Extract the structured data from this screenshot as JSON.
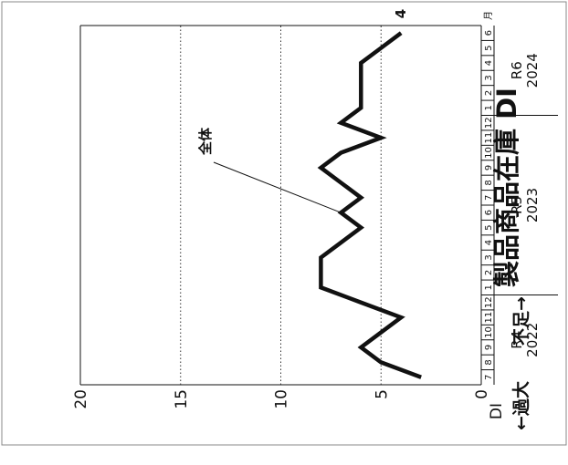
{
  "chart_data": {
    "type": "line",
    "title": "製品商品在庫 DI",
    "yaxis_label": "DI",
    "ylim": [
      0,
      20
    ],
    "yticks": [
      "0",
      "5",
      "10",
      "15",
      "20"
    ],
    "grid": "dotted at 5, 10, 15",
    "x_months": [
      "7",
      "8",
      "9",
      "10",
      "11",
      "12",
      "1",
      "2",
      "3",
      "4",
      "5",
      "6",
      "7",
      "8",
      "9",
      "10",
      "11",
      "12",
      "1",
      "2",
      "3",
      "4",
      "5",
      "6"
    ],
    "month_unit": "月",
    "year_groups": [
      {
        "era": "R4",
        "year": "2022"
      },
      {
        "era": "R5",
        "year": "2023"
      },
      {
        "era": "R6",
        "year": "2024"
      }
    ],
    "series": [
      {
        "name": "全体",
        "values": [
          3,
          5,
          6,
          5,
          4,
          6,
          8,
          8,
          8,
          7,
          6,
          7,
          6,
          7,
          8,
          7,
          5,
          7,
          6,
          6,
          6,
          6,
          5,
          4
        ]
      }
    ],
    "end_label": "4",
    "direction_high": "←過大",
    "direction_low": "不足→"
  }
}
